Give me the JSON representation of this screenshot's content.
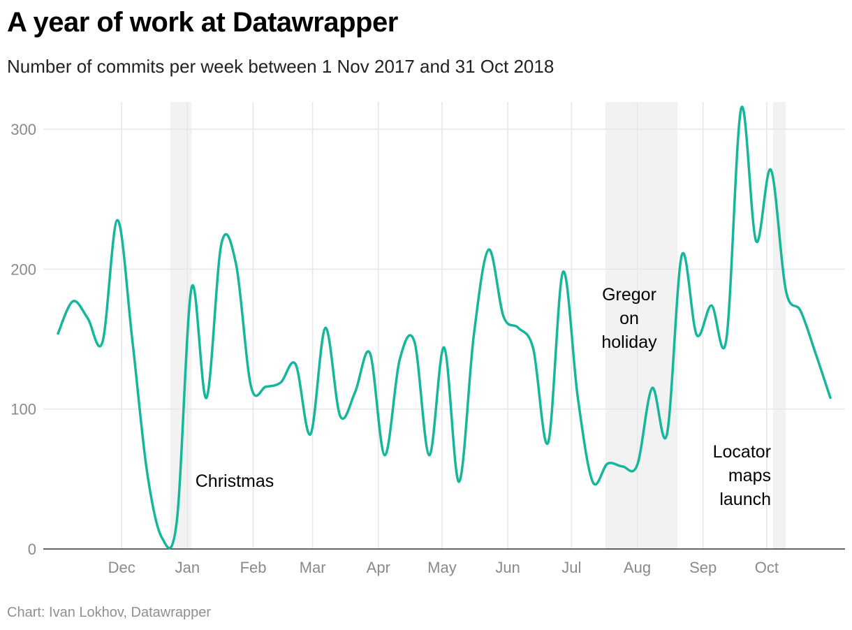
{
  "header": {
    "title": "A year of work at Datawrapper",
    "subtitle": "Number of commits per week between 1 Nov 2017 and 31 Oct 2018"
  },
  "footer": {
    "source": "Chart: Ivan Lokhov, Datawrapper"
  },
  "colors": {
    "line": "#15b79b",
    "grid": "#e6e6e6",
    "highlight": "#f2f2f2",
    "axis": "#333333"
  },
  "chart_data": {
    "type": "line",
    "title": "A year of work at Datawrapper",
    "xlabel": "",
    "ylabel": "",
    "x_unit": "days since 1 Nov 2017",
    "xlim": [
      0,
      364
    ],
    "ylim": [
      0,
      320
    ],
    "yticks": [
      0,
      100,
      200,
      300
    ],
    "xticks": [
      {
        "label": "Dec",
        "x": 30
      },
      {
        "label": "Jan",
        "x": 61
      },
      {
        "label": "Feb",
        "x": 92
      },
      {
        "label": "Mar",
        "x": 120
      },
      {
        "label": "Apr",
        "x": 151
      },
      {
        "label": "May",
        "x": 181
      },
      {
        "label": "Jun",
        "x": 212
      },
      {
        "label": "Jul",
        "x": 242
      },
      {
        "label": "Aug",
        "x": 273
      },
      {
        "label": "Sep",
        "x": 304
      },
      {
        "label": "Oct",
        "x": 334
      }
    ],
    "series": [
      {
        "name": "Commits per week",
        "x": [
          0,
          7,
          14,
          21,
          28,
          35,
          42,
          49,
          56,
          63,
          70,
          77,
          84,
          91,
          98,
          105,
          112,
          119,
          126,
          133,
          140,
          147,
          154,
          161,
          168,
          175,
          182,
          189,
          196,
          203,
          210,
          217,
          224,
          231,
          238,
          245,
          252,
          259,
          266,
          273,
          280,
          287,
          294,
          301,
          308,
          315,
          322,
          329,
          336,
          343,
          350,
          357,
          364
        ],
        "values": [
          154,
          177,
          165,
          148,
          235,
          150,
          55,
          8,
          20,
          187,
          108,
          218,
          203,
          116,
          116,
          119,
          132,
          82,
          158,
          95,
          112,
          140,
          67,
          135,
          148,
          67,
          144,
          48,
          153,
          214,
          166,
          158,
          143,
          76,
          198,
          108,
          48,
          61,
          59,
          60,
          115,
          82,
          210,
          153,
          174,
          150,
          315,
          220,
          271,
          185,
          170,
          140,
          108
        ]
      }
    ],
    "highlights": [
      {
        "from": 53,
        "to": 63,
        "label": "Christmas"
      },
      {
        "from": 258,
        "to": 292,
        "label": "Gregor on holiday"
      },
      {
        "from": 337,
        "to": 343,
        "label": "Locator maps launch"
      }
    ],
    "annotations": [
      {
        "text": "Christmas",
        "lines": [
          "Christmas"
        ]
      },
      {
        "text": "Gregor on holiday",
        "lines": [
          "Gregor",
          "on",
          "holiday"
        ]
      },
      {
        "text": "Locator maps launch",
        "lines": [
          "Locator",
          "maps",
          "launch"
        ]
      }
    ]
  }
}
